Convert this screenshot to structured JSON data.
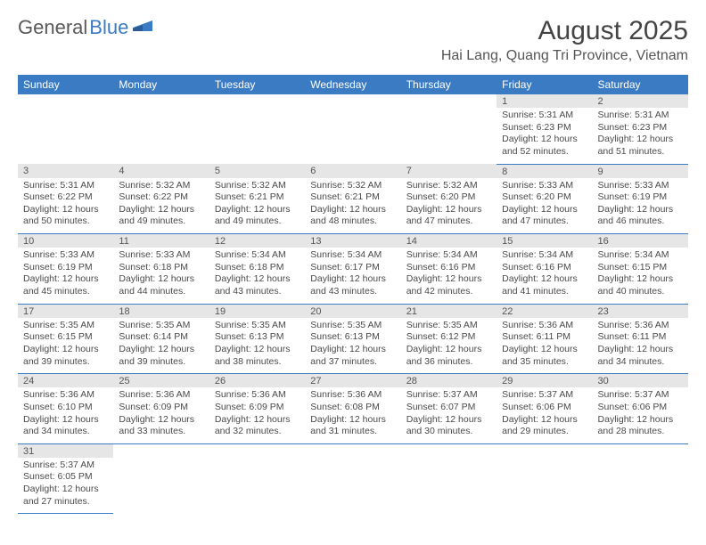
{
  "logo": {
    "part1": "General",
    "part2": "Blue"
  },
  "title": "August 2025",
  "location": "Hai Lang, Quang Tri Province, Vietnam",
  "colors": {
    "header_bg": "#3b7bc4",
    "header_text": "#ffffff",
    "daynum_bg": "#e6e6e6",
    "border": "#3b7bc4",
    "text": "#4a4a4a",
    "logo_gray": "#5a5a5a",
    "logo_blue": "#3b7bc4"
  },
  "day_names": [
    "Sunday",
    "Monday",
    "Tuesday",
    "Wednesday",
    "Thursday",
    "Friday",
    "Saturday"
  ],
  "weeks": [
    [
      null,
      null,
      null,
      null,
      null,
      {
        "num": "1",
        "sunrise": "Sunrise: 5:31 AM",
        "sunset": "Sunset: 6:23 PM",
        "daylight1": "Daylight: 12 hours",
        "daylight2": "and 52 minutes."
      },
      {
        "num": "2",
        "sunrise": "Sunrise: 5:31 AM",
        "sunset": "Sunset: 6:23 PM",
        "daylight1": "Daylight: 12 hours",
        "daylight2": "and 51 minutes."
      }
    ],
    [
      {
        "num": "3",
        "sunrise": "Sunrise: 5:31 AM",
        "sunset": "Sunset: 6:22 PM",
        "daylight1": "Daylight: 12 hours",
        "daylight2": "and 50 minutes."
      },
      {
        "num": "4",
        "sunrise": "Sunrise: 5:32 AM",
        "sunset": "Sunset: 6:22 PM",
        "daylight1": "Daylight: 12 hours",
        "daylight2": "and 49 minutes."
      },
      {
        "num": "5",
        "sunrise": "Sunrise: 5:32 AM",
        "sunset": "Sunset: 6:21 PM",
        "daylight1": "Daylight: 12 hours",
        "daylight2": "and 49 minutes."
      },
      {
        "num": "6",
        "sunrise": "Sunrise: 5:32 AM",
        "sunset": "Sunset: 6:21 PM",
        "daylight1": "Daylight: 12 hours",
        "daylight2": "and 48 minutes."
      },
      {
        "num": "7",
        "sunrise": "Sunrise: 5:32 AM",
        "sunset": "Sunset: 6:20 PM",
        "daylight1": "Daylight: 12 hours",
        "daylight2": "and 47 minutes."
      },
      {
        "num": "8",
        "sunrise": "Sunrise: 5:33 AM",
        "sunset": "Sunset: 6:20 PM",
        "daylight1": "Daylight: 12 hours",
        "daylight2": "and 47 minutes."
      },
      {
        "num": "9",
        "sunrise": "Sunrise: 5:33 AM",
        "sunset": "Sunset: 6:19 PM",
        "daylight1": "Daylight: 12 hours",
        "daylight2": "and 46 minutes."
      }
    ],
    [
      {
        "num": "10",
        "sunrise": "Sunrise: 5:33 AM",
        "sunset": "Sunset: 6:19 PM",
        "daylight1": "Daylight: 12 hours",
        "daylight2": "and 45 minutes."
      },
      {
        "num": "11",
        "sunrise": "Sunrise: 5:33 AM",
        "sunset": "Sunset: 6:18 PM",
        "daylight1": "Daylight: 12 hours",
        "daylight2": "and 44 minutes."
      },
      {
        "num": "12",
        "sunrise": "Sunrise: 5:34 AM",
        "sunset": "Sunset: 6:18 PM",
        "daylight1": "Daylight: 12 hours",
        "daylight2": "and 43 minutes."
      },
      {
        "num": "13",
        "sunrise": "Sunrise: 5:34 AM",
        "sunset": "Sunset: 6:17 PM",
        "daylight1": "Daylight: 12 hours",
        "daylight2": "and 43 minutes."
      },
      {
        "num": "14",
        "sunrise": "Sunrise: 5:34 AM",
        "sunset": "Sunset: 6:16 PM",
        "daylight1": "Daylight: 12 hours",
        "daylight2": "and 42 minutes."
      },
      {
        "num": "15",
        "sunrise": "Sunrise: 5:34 AM",
        "sunset": "Sunset: 6:16 PM",
        "daylight1": "Daylight: 12 hours",
        "daylight2": "and 41 minutes."
      },
      {
        "num": "16",
        "sunrise": "Sunrise: 5:34 AM",
        "sunset": "Sunset: 6:15 PM",
        "daylight1": "Daylight: 12 hours",
        "daylight2": "and 40 minutes."
      }
    ],
    [
      {
        "num": "17",
        "sunrise": "Sunrise: 5:35 AM",
        "sunset": "Sunset: 6:15 PM",
        "daylight1": "Daylight: 12 hours",
        "daylight2": "and 39 minutes."
      },
      {
        "num": "18",
        "sunrise": "Sunrise: 5:35 AM",
        "sunset": "Sunset: 6:14 PM",
        "daylight1": "Daylight: 12 hours",
        "daylight2": "and 39 minutes."
      },
      {
        "num": "19",
        "sunrise": "Sunrise: 5:35 AM",
        "sunset": "Sunset: 6:13 PM",
        "daylight1": "Daylight: 12 hours",
        "daylight2": "and 38 minutes."
      },
      {
        "num": "20",
        "sunrise": "Sunrise: 5:35 AM",
        "sunset": "Sunset: 6:13 PM",
        "daylight1": "Daylight: 12 hours",
        "daylight2": "and 37 minutes."
      },
      {
        "num": "21",
        "sunrise": "Sunrise: 5:35 AM",
        "sunset": "Sunset: 6:12 PM",
        "daylight1": "Daylight: 12 hours",
        "daylight2": "and 36 minutes."
      },
      {
        "num": "22",
        "sunrise": "Sunrise: 5:36 AM",
        "sunset": "Sunset: 6:11 PM",
        "daylight1": "Daylight: 12 hours",
        "daylight2": "and 35 minutes."
      },
      {
        "num": "23",
        "sunrise": "Sunrise: 5:36 AM",
        "sunset": "Sunset: 6:11 PM",
        "daylight1": "Daylight: 12 hours",
        "daylight2": "and 34 minutes."
      }
    ],
    [
      {
        "num": "24",
        "sunrise": "Sunrise: 5:36 AM",
        "sunset": "Sunset: 6:10 PM",
        "daylight1": "Daylight: 12 hours",
        "daylight2": "and 34 minutes."
      },
      {
        "num": "25",
        "sunrise": "Sunrise: 5:36 AM",
        "sunset": "Sunset: 6:09 PM",
        "daylight1": "Daylight: 12 hours",
        "daylight2": "and 33 minutes."
      },
      {
        "num": "26",
        "sunrise": "Sunrise: 5:36 AM",
        "sunset": "Sunset: 6:09 PM",
        "daylight1": "Daylight: 12 hours",
        "daylight2": "and 32 minutes."
      },
      {
        "num": "27",
        "sunrise": "Sunrise: 5:36 AM",
        "sunset": "Sunset: 6:08 PM",
        "daylight1": "Daylight: 12 hours",
        "daylight2": "and 31 minutes."
      },
      {
        "num": "28",
        "sunrise": "Sunrise: 5:37 AM",
        "sunset": "Sunset: 6:07 PM",
        "daylight1": "Daylight: 12 hours",
        "daylight2": "and 30 minutes."
      },
      {
        "num": "29",
        "sunrise": "Sunrise: 5:37 AM",
        "sunset": "Sunset: 6:06 PM",
        "daylight1": "Daylight: 12 hours",
        "daylight2": "and 29 minutes."
      },
      {
        "num": "30",
        "sunrise": "Sunrise: 5:37 AM",
        "sunset": "Sunset: 6:06 PM",
        "daylight1": "Daylight: 12 hours",
        "daylight2": "and 28 minutes."
      }
    ],
    [
      {
        "num": "31",
        "sunrise": "Sunrise: 5:37 AM",
        "sunset": "Sunset: 6:05 PM",
        "daylight1": "Daylight: 12 hours",
        "daylight2": "and 27 minutes."
      },
      null,
      null,
      null,
      null,
      null,
      null
    ]
  ]
}
